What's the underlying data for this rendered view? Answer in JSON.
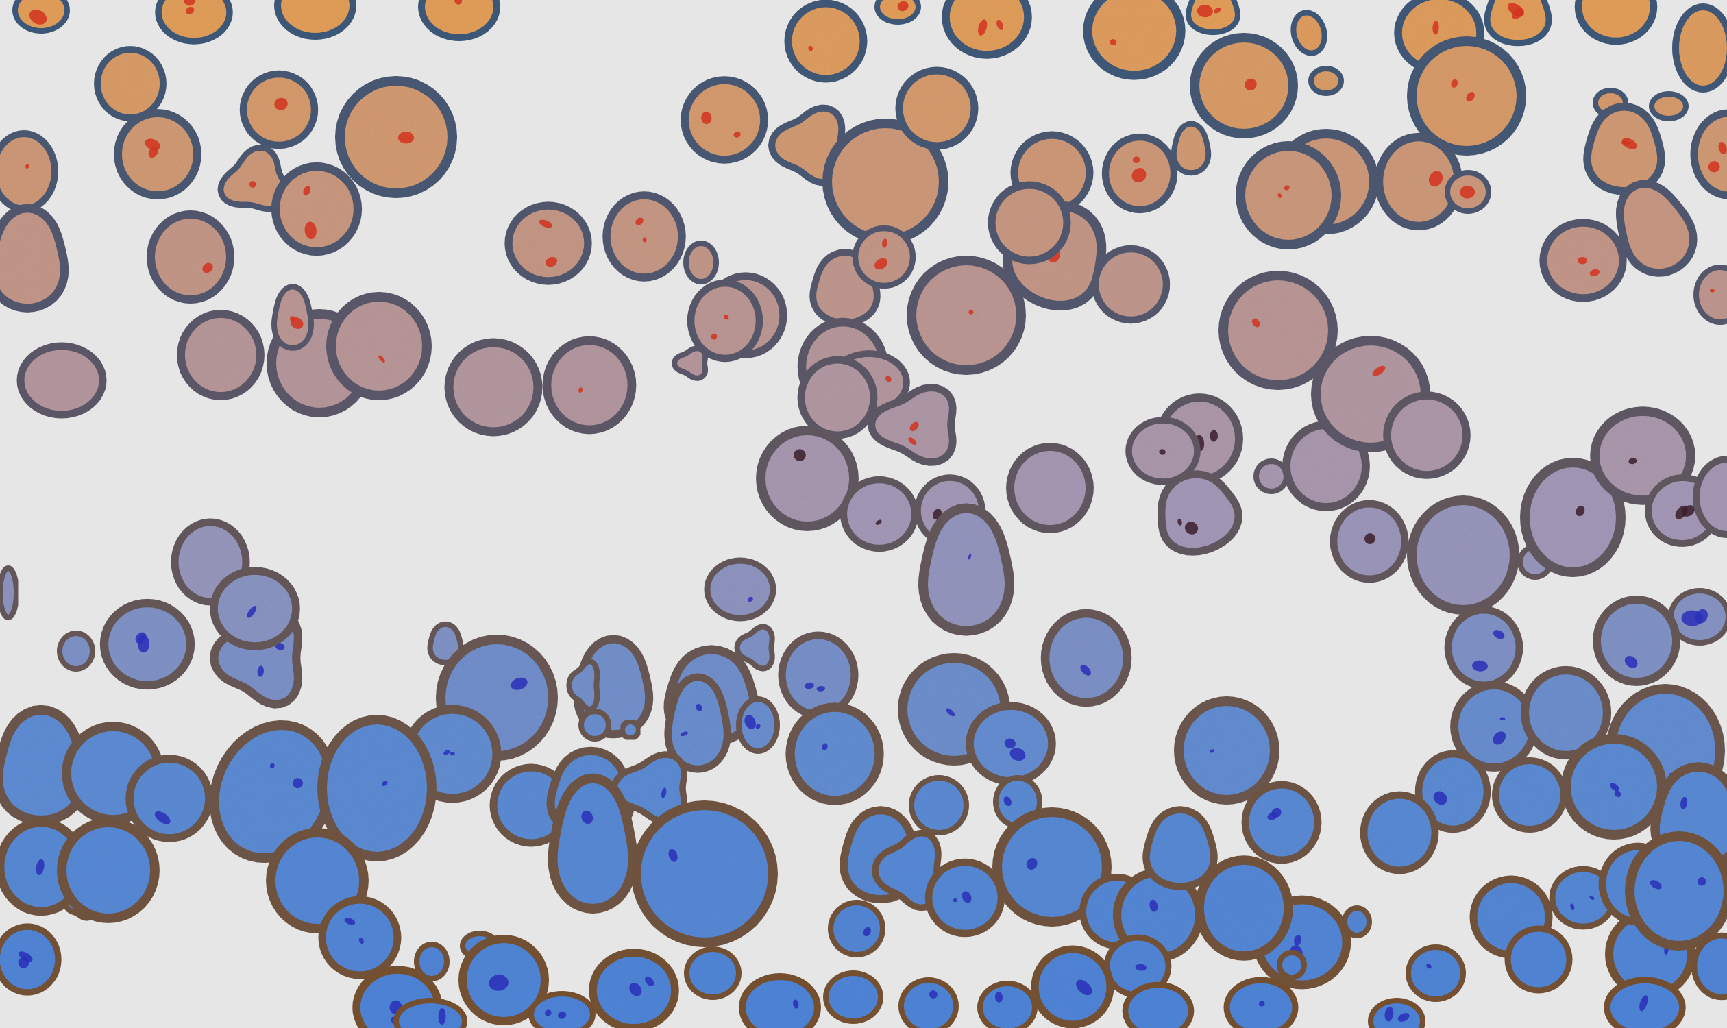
{
  "image": {
    "kind": "stylized microscopy-like illustration of rounded cells",
    "background_color": "#e6e6e6",
    "gradient": {
      "direction": "top-to-bottom",
      "fill_colors": [
        "#e8a15a",
        "#c79a8b",
        "#a79bbb",
        "#5f8fd8",
        "#4f86dc"
      ],
      "stroke_colors": [
        "#3f5b7c",
        "#5d5a6d",
        "#6b5a57",
        "#7a5330"
      ]
    },
    "inclusion_colors": {
      "upper": "#d2321f",
      "middle": "#3b1d2c",
      "lower": "#2a2fb8"
    }
  }
}
